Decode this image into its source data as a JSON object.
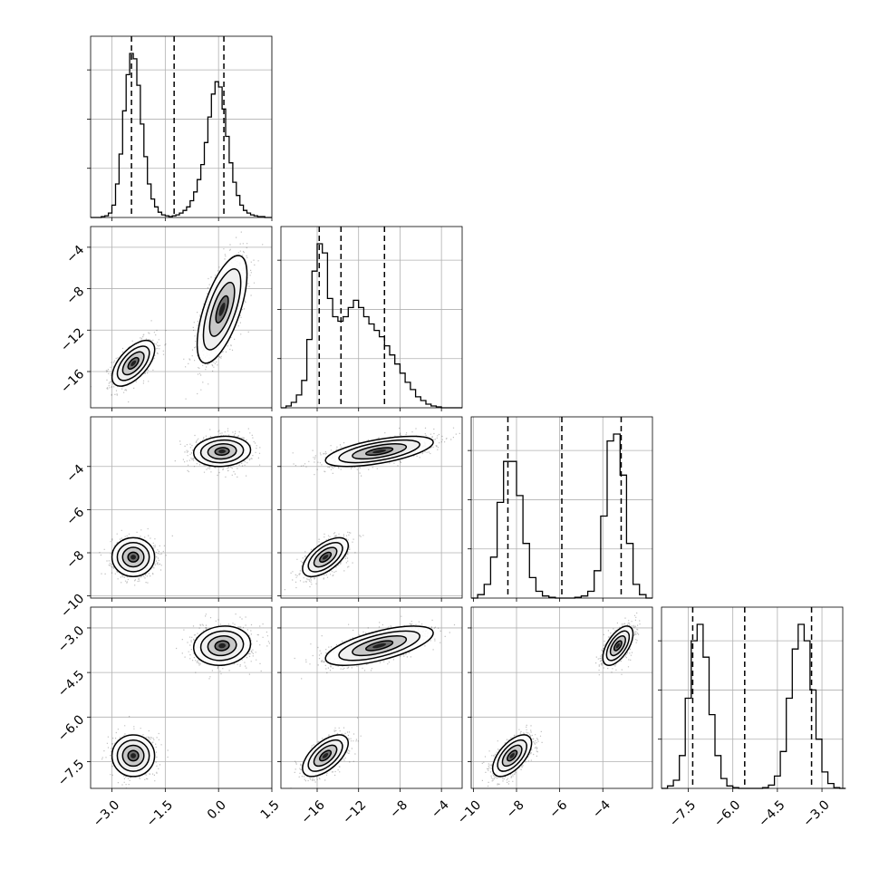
{
  "figure": {
    "type": "corner-plot"
  },
  "chart_data": [
    {
      "type": "histogram",
      "panel": "hist-0",
      "x": [
        -3.6,
        -3.5,
        -3.4,
        -3.3,
        -3.2,
        -3.1,
        -3.0,
        -2.9,
        -2.8,
        -2.7,
        -2.6,
        -2.5,
        -2.4,
        -2.3,
        -2.2,
        -2.1,
        -2.0,
        -1.9,
        -1.8,
        -1.7,
        -1.6,
        -1.5,
        -1.4,
        -1.3,
        -1.2,
        -1.1,
        -1.0,
        -0.9,
        -0.8,
        -0.7,
        -0.6,
        -0.5,
        -0.4,
        -0.3,
        -0.2,
        -0.1,
        0.0,
        0.1,
        0.2,
        0.3,
        0.4,
        0.5,
        0.6,
        0.7,
        0.8,
        0.9,
        1.0,
        1.1,
        1.2,
        1.3,
        1.4,
        1.5
      ],
      "counts": [
        0,
        0,
        0,
        1,
        2,
        5,
        14,
        38,
        72,
        121,
        162,
        186,
        180,
        150,
        106,
        69,
        38,
        21,
        12,
        6,
        3,
        2,
        1,
        2,
        3,
        5,
        8,
        12,
        19,
        29,
        43,
        60,
        85,
        114,
        140,
        154,
        148,
        123,
        92,
        62,
        40,
        25,
        14,
        8,
        5,
        3,
        2,
        1,
        1,
        0,
        0,
        0
      ],
      "quantile_lines": [
        -2.45,
        -1.25,
        0.15
      ],
      "xlim": [
        -3.6,
        1.5
      ]
    },
    {
      "type": "scatter-density",
      "panel": "scatter-1-0",
      "x_param": 0,
      "y_param": 1,
      "clusters": [
        {
          "mean": [
            -2.4,
            -15.2
          ],
          "sd": [
            0.3,
            1.1
          ],
          "corr": 0.6
        },
        {
          "mean": [
            0.1,
            -10.0
          ],
          "sd": [
            0.35,
            2.6
          ],
          "corr": 0.65
        }
      ],
      "xlim": [
        -3.6,
        1.5
      ],
      "ylim": [
        -19.5,
        -2.0
      ]
    },
    {
      "type": "scatter-density",
      "panel": "scatter-2-0",
      "x_param": 0,
      "y_param": 2,
      "clusters": [
        {
          "mean": [
            -2.4,
            -8.2
          ],
          "sd": [
            0.3,
            0.45
          ],
          "corr": 0.0
        },
        {
          "mean": [
            0.1,
            -3.3
          ],
          "sd": [
            0.4,
            0.35
          ],
          "corr": 0.1
        }
      ],
      "xlim": [
        -3.6,
        1.5
      ],
      "ylim": [
        -10.1,
        -1.7
      ]
    },
    {
      "type": "scatter-density",
      "panel": "scatter-3-0",
      "x_param": 0,
      "y_param": 3,
      "clusters": [
        {
          "mean": [
            -2.4,
            -7.3
          ],
          "sd": [
            0.3,
            0.35
          ],
          "corr": 0.0
        },
        {
          "mean": [
            0.1,
            -3.6
          ],
          "sd": [
            0.4,
            0.33
          ],
          "corr": 0.1
        }
      ],
      "xlim": [
        -3.6,
        1.5
      ],
      "ylim": [
        -8.4,
        -2.3
      ]
    },
    {
      "type": "histogram",
      "panel": "hist-1",
      "x": [
        -19.5,
        -19.0,
        -18.5,
        -18.0,
        -17.5,
        -17.0,
        -16.5,
        -16.0,
        -15.5,
        -15.0,
        -14.5,
        -14.0,
        -13.5,
        -13.0,
        -12.5,
        -12.0,
        -11.5,
        -11.0,
        -10.5,
        -10.0,
        -9.5,
        -9.0,
        -8.5,
        -8.0,
        -7.5,
        -7.0,
        -6.5,
        -6.0,
        -5.5,
        -5.0,
        -4.5,
        -4.0,
        -3.5,
        -3.0,
        -2.5,
        -2.0
      ],
      "counts": [
        0,
        2,
        6,
        14,
        30,
        75,
        150,
        180,
        170,
        120,
        100,
        95,
        100,
        110,
        118,
        110,
        100,
        92,
        85,
        78,
        68,
        58,
        48,
        38,
        28,
        20,
        12,
        8,
        4,
        2,
        1,
        0,
        0,
        0,
        0,
        0
      ],
      "quantile_lines": [
        -15.8,
        -13.7,
        -9.5
      ],
      "xlim": [
        -19.5,
        -2.0
      ]
    },
    {
      "type": "scatter-density",
      "panel": "scatter-2-1",
      "x_param": 1,
      "y_param": 2,
      "clusters": [
        {
          "mean": [
            -15.2,
            -8.2
          ],
          "sd": [
            1.1,
            0.45
          ],
          "corr": 0.6
        },
        {
          "mean": [
            -10.0,
            -3.3
          ],
          "sd": [
            2.6,
            0.35
          ],
          "corr": 0.6
        }
      ],
      "xlim": [
        -19.5,
        -2.0
      ],
      "ylim": [
        -10.1,
        -1.7
      ]
    },
    {
      "type": "scatter-density",
      "panel": "scatter-3-1",
      "x_param": 1,
      "y_param": 3,
      "clusters": [
        {
          "mean": [
            -15.2,
            -7.3
          ],
          "sd": [
            1.1,
            0.35
          ],
          "corr": 0.6
        },
        {
          "mean": [
            -10.0,
            -3.6
          ],
          "sd": [
            2.6,
            0.33
          ],
          "corr": 0.65
        }
      ],
      "xlim": [
        -19.5,
        -2.0
      ],
      "ylim": [
        -8.4,
        -2.3
      ]
    },
    {
      "type": "histogram",
      "panel": "hist-2",
      "x": [
        -10.1,
        -9.8,
        -9.5,
        -9.2,
        -8.9,
        -8.6,
        -8.3,
        -8.0,
        -7.7,
        -7.4,
        -7.1,
        -6.8,
        -6.5,
        -6.2,
        -5.9,
        -5.6,
        -5.3,
        -5.0,
        -4.7,
        -4.4,
        -4.1,
        -3.8,
        -3.5,
        -3.2,
        -2.9,
        -2.6,
        -2.3,
        -2.0,
        -1.7
      ],
      "counts": [
        0,
        5,
        20,
        60,
        140,
        200,
        200,
        150,
        80,
        30,
        10,
        3,
        1,
        0,
        0,
        0,
        1,
        3,
        10,
        40,
        120,
        230,
        240,
        180,
        80,
        20,
        5,
        0,
        0
      ],
      "quantile_lines": [
        -8.4,
        -5.9,
        -3.15
      ],
      "xlim": [
        -10.1,
        -1.7
      ]
    },
    {
      "type": "scatter-density",
      "panel": "scatter-3-2",
      "x_param": 2,
      "y_param": 3,
      "clusters": [
        {
          "mean": [
            -8.2,
            -7.3
          ],
          "sd": [
            0.45,
            0.35
          ],
          "corr": 0.6
        },
        {
          "mean": [
            -3.3,
            -3.6
          ],
          "sd": [
            0.35,
            0.33
          ],
          "corr": 0.6
        }
      ],
      "xlim": [
        -10.1,
        -1.7
      ],
      "ylim": [
        -8.4,
        -2.3
      ]
    },
    {
      "type": "histogram",
      "panel": "hist-3",
      "x": [
        -8.4,
        -8.2,
        -8.0,
        -7.8,
        -7.6,
        -7.4,
        -7.2,
        -7.0,
        -6.8,
        -6.6,
        -6.4,
        -6.2,
        -6.0,
        -5.8,
        -5.6,
        -5.4,
        -5.2,
        -5.0,
        -4.8,
        -4.6,
        -4.4,
        -4.2,
        -4.0,
        -3.8,
        -3.6,
        -3.4,
        -3.2,
        -3.0,
        -2.8,
        -2.6,
        -2.4,
        -2.2
      ],
      "counts": [
        0,
        3,
        10,
        40,
        110,
        180,
        200,
        160,
        90,
        40,
        12,
        3,
        1,
        0,
        0,
        0,
        0,
        1,
        4,
        15,
        45,
        110,
        170,
        200,
        180,
        120,
        60,
        20,
        6,
        1,
        0,
        0
      ],
      "quantile_lines": [
        -7.35,
        -5.6,
        -3.35
      ],
      "xlim": [
        -8.4,
        -2.3
      ]
    }
  ],
  "axes": {
    "x0": {
      "ticks": [
        "−3.0",
        "−1.5",
        "0.0",
        "1.5"
      ],
      "values": [
        -3.0,
        -1.5,
        0.0,
        1.5
      ]
    },
    "x1": {
      "ticks": [
        "−16",
        "−12",
        "−8",
        "−4"
      ],
      "values": [
        -16,
        -12,
        -8,
        -4
      ]
    },
    "x2": {
      "ticks": [
        "−10",
        "−8",
        "−6",
        "−4"
      ],
      "values": [
        -10,
        -8,
        -6,
        -4
      ]
    },
    "x3": {
      "ticks": [
        "−7.5",
        "−6.0",
        "−4.5",
        "−3.0"
      ],
      "values": [
        -7.5,
        -6.0,
        -4.5,
        -3.0
      ]
    },
    "y1": {
      "ticks": [
        "−4",
        "−8",
        "−12",
        "−16"
      ],
      "values": [
        -4,
        -8,
        -12,
        -16
      ]
    },
    "y2": {
      "ticks": [
        "−4",
        "−6",
        "−8",
        "−10"
      ],
      "values": [
        -4,
        -6,
        -8,
        -10
      ]
    },
    "y3": {
      "ticks": [
        "−3.0",
        "−4.5",
        "−6.0",
        "−7.5"
      ],
      "values": [
        -3.0,
        -4.5,
        -6.0,
        -7.5
      ]
    }
  },
  "style": {
    "hist_color": "#000000",
    "grid_color": "#b0b0b0",
    "point_color": "#000000",
    "grid": true
  }
}
